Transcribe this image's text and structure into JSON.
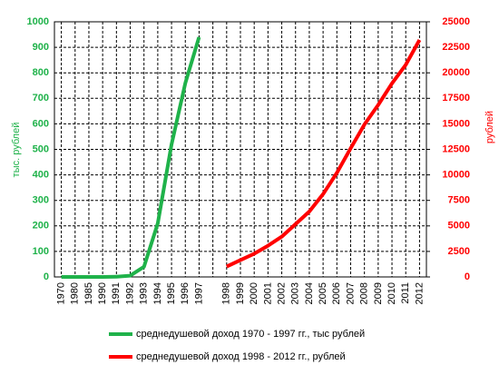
{
  "chart_data": {
    "type": "line",
    "categories": [
      "1970",
      "1980",
      "1985",
      "1990",
      "1991",
      "1992",
      "1993",
      "1994",
      "1995",
      "1996",
      "1997",
      null,
      "1998",
      "1999",
      "2000",
      "2001",
      "2002",
      "2003",
      "2004",
      "2005",
      "2006",
      "2007",
      "2008",
      "2009",
      "2010",
      "2011",
      "2012"
    ],
    "series": [
      {
        "name": "среднедушевой доход 1970 - 1997 гг., тыс рублей",
        "color": "#1fb24a",
        "values": [
          0,
          0,
          0,
          0,
          1,
          5,
          40,
          210,
          520,
          760,
          940,
          null,
          null,
          null,
          null,
          null,
          null,
          null,
          null,
          null,
          null,
          null,
          null,
          null,
          null,
          null,
          null
        ]
      },
      {
        "name": "среднедушевой доход 1998 - 2012 гг., рублей",
        "color": "#ff0000",
        "axis": "y2",
        "values": [
          null,
          null,
          null,
          null,
          null,
          null,
          null,
          null,
          null,
          null,
          null,
          null,
          1010,
          1659,
          2281,
          3062,
          3947,
          5170,
          6410,
          8112,
          10196,
          12603,
          14941,
          16857,
          18958,
          20780,
          23221
        ]
      }
    ],
    "ylabel": "тыс.  рублей",
    "y2label": "рублей",
    "ylim": [
      0,
      1000
    ],
    "yticks": [
      0,
      100,
      200,
      300,
      400,
      500,
      600,
      700,
      800,
      900,
      1000
    ],
    "y2lim": [
      0,
      25000
    ],
    "y2ticks": [
      0,
      2500,
      5000,
      7500,
      10000,
      12500,
      15000,
      17500,
      20000,
      22500,
      25000
    ],
    "grid": true,
    "legend": "bottom"
  }
}
